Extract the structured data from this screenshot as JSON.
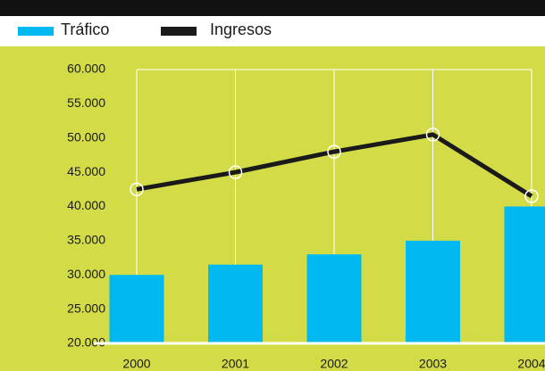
{
  "chart_data": {
    "type": "bar_line",
    "categories": [
      "2000",
      "2001",
      "2002",
      "2003",
      "2004"
    ],
    "series": [
      {
        "name": "Tráfico",
        "color": "#00b9f1",
        "type": "bar",
        "values": [
          30000,
          31500,
          33000,
          35000,
          40000
        ]
      },
      {
        "name": "Ingresos",
        "color": "#1a1a1a",
        "type": "line",
        "values": [
          42500,
          45000,
          48000,
          50500,
          41500
        ]
      }
    ],
    "ylim": [
      20000,
      60000
    ],
    "yticks": [
      {
        "value": 20000,
        "label": "20.000"
      },
      {
        "value": 25000,
        "label": "25.000"
      },
      {
        "value": 30000,
        "label": "30.000"
      },
      {
        "value": 35000,
        "label": "35.000"
      },
      {
        "value": 40000,
        "label": "40.000"
      },
      {
        "value": 45000,
        "label": "45.000"
      },
      {
        "value": 50000,
        "label": "50.000"
      },
      {
        "value": 55000,
        "label": "55.000"
      },
      {
        "value": 60000,
        "label": "60.000"
      }
    ],
    "grid": true,
    "legend": "top-left",
    "background": "#d3dc47"
  }
}
